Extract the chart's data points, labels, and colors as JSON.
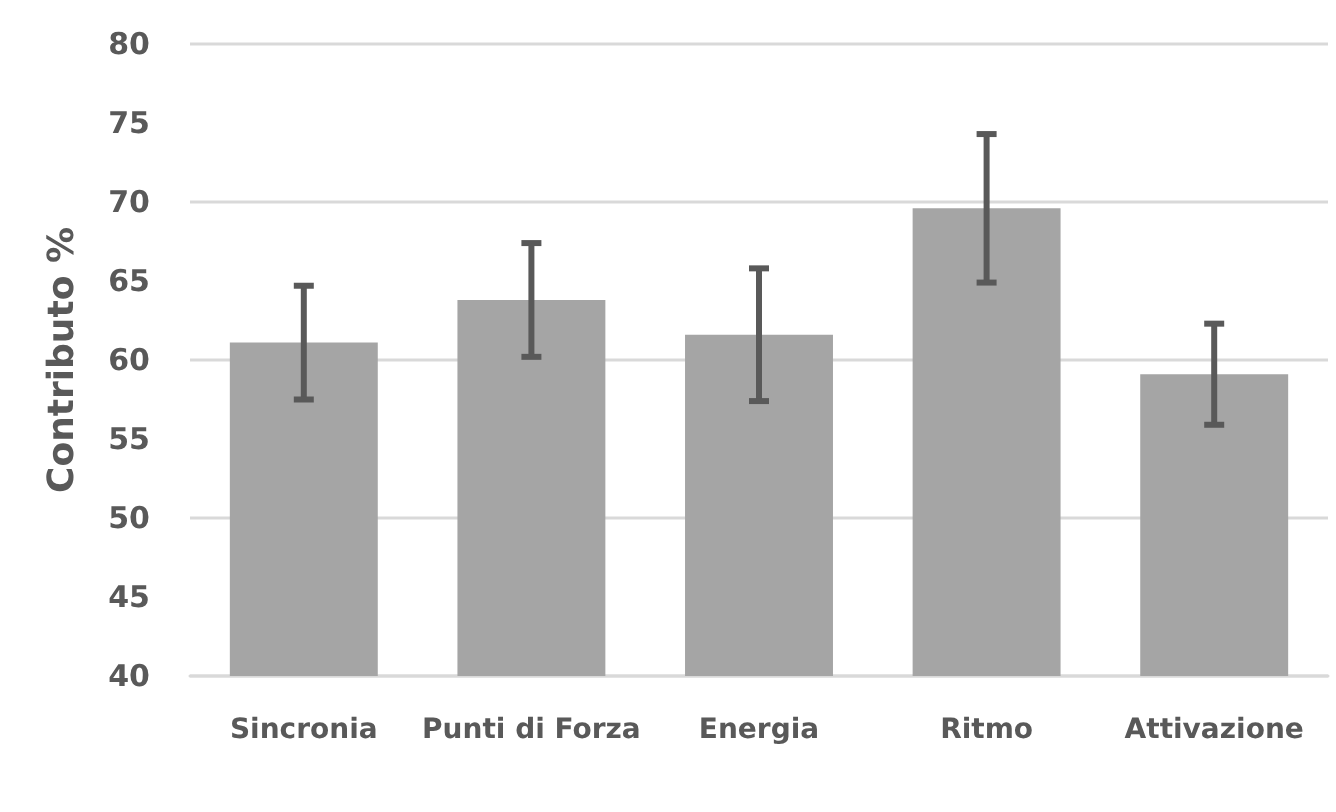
{
  "chart_data": {
    "type": "bar",
    "ylabel": "Contributo %",
    "categories": [
      "Sincronia",
      "Punti di Forza",
      "Energia",
      "Ritmo",
      "Attivazione"
    ],
    "values": [
      61.1,
      63.8,
      61.6,
      69.6,
      59.1
    ],
    "errors": [
      3.6,
      3.6,
      4.2,
      4.7,
      3.2
    ],
    "color": "#a5a5a5",
    "ylim": [
      40,
      80
    ],
    "yticks": [
      40,
      45,
      50,
      55,
      60,
      65,
      70,
      75,
      80
    ],
    "grid": "y"
  }
}
